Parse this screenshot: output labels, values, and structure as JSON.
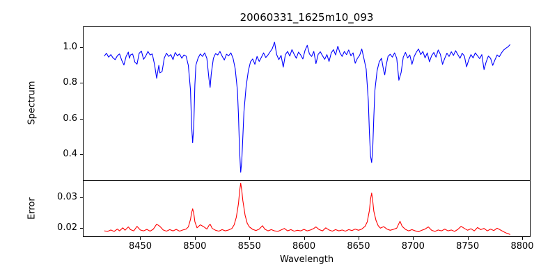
{
  "title": "20060331_1625m10_093",
  "colors": {
    "spectrum_line": "#0000ff",
    "error_line": "#ff0000",
    "axis": "#000000",
    "background": "#ffffff"
  },
  "chart_data": [
    {
      "type": "line",
      "name": "spectrum-panel",
      "title": "20060331_1625m10_093",
      "ylabel": "Spectrum",
      "xlabel": "",
      "legend": "none",
      "grid": false,
      "xlim": [
        8398,
        8807
      ],
      "ylim": [
        0.257,
        1.112
      ],
      "yticks": [
        1.0,
        0.8,
        0.6,
        0.4
      ],
      "ytick_labels": [
        "1.0",
        "0.8",
        "0.6",
        "0.4"
      ],
      "line_color": "#0000ff",
      "notable_features": "absorption lines: Ca II triplet 8498 (depth 0.465), 8542 (depth 0.30), 8662 (depth 0.355); weaker lines near 8465, 8514, 8674, 8688",
      "points": [
        [
          8417,
          0.95
        ],
        [
          8419,
          0.966
        ],
        [
          8421,
          0.944
        ],
        [
          8423,
          0.958
        ],
        [
          8425,
          0.94
        ],
        [
          8427,
          0.93
        ],
        [
          8429,
          0.952
        ],
        [
          8431,
          0.962
        ],
        [
          8433,
          0.926
        ],
        [
          8435,
          0.9
        ],
        [
          8437,
          0.948
        ],
        [
          8439,
          0.972
        ],
        [
          8440,
          0.938
        ],
        [
          8441,
          0.956
        ],
        [
          8443,
          0.962
        ],
        [
          8445,
          0.916
        ],
        [
          8447,
          0.905
        ],
        [
          8449,
          0.966
        ],
        [
          8451,
          0.978
        ],
        [
          8453,
          0.932
        ],
        [
          8455,
          0.95
        ],
        [
          8457,
          0.976
        ],
        [
          8459,
          0.956
        ],
        [
          8461,
          0.962
        ],
        [
          8463,
          0.904
        ],
        [
          8465,
          0.826
        ],
        [
          8467,
          0.898
        ],
        [
          8468,
          0.856
        ],
        [
          8470,
          0.864
        ],
        [
          8472,
          0.94
        ],
        [
          8474,
          0.966
        ],
        [
          8476,
          0.948
        ],
        [
          8478,
          0.958
        ],
        [
          8480,
          0.93
        ],
        [
          8482,
          0.97
        ],
        [
          8484,
          0.952
        ],
        [
          8486,
          0.962
        ],
        [
          8488,
          0.938
        ],
        [
          8490,
          0.956
        ],
        [
          8492,
          0.95
        ],
        [
          8494,
          0.898
        ],
        [
          8496,
          0.76
        ],
        [
          8497,
          0.56
        ],
        [
          8498,
          0.465
        ],
        [
          8499,
          0.56
        ],
        [
          8500,
          0.79
        ],
        [
          8501,
          0.9
        ],
        [
          8503,
          0.94
        ],
        [
          8505,
          0.962
        ],
        [
          8507,
          0.948
        ],
        [
          8509,
          0.968
        ],
        [
          8511,
          0.938
        ],
        [
          8513,
          0.82
        ],
        [
          8514,
          0.775
        ],
        [
          8515,
          0.85
        ],
        [
          8517,
          0.938
        ],
        [
          8519,
          0.964
        ],
        [
          8521,
          0.956
        ],
        [
          8523,
          0.976
        ],
        [
          8525,
          0.95
        ],
        [
          8527,
          0.928
        ],
        [
          8529,
          0.96
        ],
        [
          8531,
          0.952
        ],
        [
          8533,
          0.968
        ],
        [
          8535,
          0.938
        ],
        [
          8537,
          0.88
        ],
        [
          8539,
          0.758
        ],
        [
          8540,
          0.62
        ],
        [
          8541,
          0.42
        ],
        [
          8542,
          0.3
        ],
        [
          8543,
          0.36
        ],
        [
          8544,
          0.5
        ],
        [
          8545,
          0.64
        ],
        [
          8547,
          0.78
        ],
        [
          8549,
          0.868
        ],
        [
          8551,
          0.918
        ],
        [
          8553,
          0.934
        ],
        [
          8555,
          0.904
        ],
        [
          8557,
          0.948
        ],
        [
          8559,
          0.92
        ],
        [
          8561,
          0.944
        ],
        [
          8563,
          0.968
        ],
        [
          8565,
          0.942
        ],
        [
          8567,
          0.956
        ],
        [
          8569,
          0.974
        ],
        [
          8571,
          0.992
        ],
        [
          8573,
          1.028
        ],
        [
          8575,
          0.958
        ],
        [
          8577,
          0.93
        ],
        [
          8579,
          0.954
        ],
        [
          8581,
          0.888
        ],
        [
          8583,
          0.958
        ],
        [
          8585,
          0.976
        ],
        [
          8587,
          0.95
        ],
        [
          8589,
          0.986
        ],
        [
          8591,
          0.96
        ],
        [
          8593,
          0.938
        ],
        [
          8595,
          0.972
        ],
        [
          8597,
          0.956
        ],
        [
          8599,
          0.934
        ],
        [
          8601,
          0.982
        ],
        [
          8603,
          1.01
        ],
        [
          8605,
          0.962
        ],
        [
          8607,
          0.948
        ],
        [
          8609,
          0.976
        ],
        [
          8611,
          0.908
        ],
        [
          8613,
          0.96
        ],
        [
          8615,
          0.974
        ],
        [
          8617,
          0.952
        ],
        [
          8619,
          0.932
        ],
        [
          8621,
          0.958
        ],
        [
          8623,
          0.92
        ],
        [
          8625,
          0.968
        ],
        [
          8627,
          0.986
        ],
        [
          8629,
          0.956
        ],
        [
          8631,
          1.005
        ],
        [
          8633,
          0.968
        ],
        [
          8635,
          0.948
        ],
        [
          8637,
          0.976
        ],
        [
          8639,
          0.958
        ],
        [
          8641,
          0.984
        ],
        [
          8643,
          0.952
        ],
        [
          8645,
          0.968
        ],
        [
          8647,
          0.91
        ],
        [
          8649,
          0.938
        ],
        [
          8651,
          0.954
        ],
        [
          8653,
          0.99
        ],
        [
          8655,
          0.934
        ],
        [
          8657,
          0.878
        ],
        [
          8659,
          0.7
        ],
        [
          8660,
          0.52
        ],
        [
          8661,
          0.39
        ],
        [
          8662,
          0.355
        ],
        [
          8663,
          0.43
        ],
        [
          8664,
          0.61
        ],
        [
          8665,
          0.76
        ],
        [
          8667,
          0.868
        ],
        [
          8669,
          0.918
        ],
        [
          8671,
          0.938
        ],
        [
          8673,
          0.87
        ],
        [
          8674,
          0.845
        ],
        [
          8675,
          0.888
        ],
        [
          8677,
          0.948
        ],
        [
          8679,
          0.96
        ],
        [
          8681,
          0.944
        ],
        [
          8683,
          0.968
        ],
        [
          8685,
          0.938
        ],
        [
          8687,
          0.815
        ],
        [
          8689,
          0.858
        ],
        [
          8691,
          0.944
        ],
        [
          8693,
          0.97
        ],
        [
          8695,
          0.94
        ],
        [
          8697,
          0.956
        ],
        [
          8699,
          0.904
        ],
        [
          8701,
          0.948
        ],
        [
          8703,
          0.972
        ],
        [
          8705,
          0.99
        ],
        [
          8707,
          0.958
        ],
        [
          8709,
          0.976
        ],
        [
          8711,
          0.94
        ],
        [
          8713,
          0.968
        ],
        [
          8715,
          0.918
        ],
        [
          8717,
          0.952
        ],
        [
          8719,
          0.97
        ],
        [
          8721,
          0.944
        ],
        [
          8723,
          0.984
        ],
        [
          8725,
          0.96
        ],
        [
          8727,
          0.904
        ],
        [
          8729,
          0.938
        ],
        [
          8731,
          0.966
        ],
        [
          8733,
          0.948
        ],
        [
          8735,
          0.974
        ],
        [
          8737,
          0.954
        ],
        [
          8739,
          0.98
        ],
        [
          8741,
          0.958
        ],
        [
          8743,
          0.938
        ],
        [
          8745,
          0.966
        ],
        [
          8747,
          0.95
        ],
        [
          8749,
          0.89
        ],
        [
          8751,
          0.928
        ],
        [
          8753,
          0.958
        ],
        [
          8755,
          0.94
        ],
        [
          8757,
          0.968
        ],
        [
          8759,
          0.952
        ],
        [
          8761,
          0.936
        ],
        [
          8763,
          0.958
        ],
        [
          8765,
          0.874
        ],
        [
          8767,
          0.918
        ],
        [
          8769,
          0.95
        ],
        [
          8771,
          0.938
        ],
        [
          8773,
          0.898
        ],
        [
          8775,
          0.928
        ],
        [
          8777,
          0.956
        ],
        [
          8779,
          0.946
        ],
        [
          8781,
          0.968
        ],
        [
          8783,
          0.984
        ],
        [
          8785,
          0.994
        ],
        [
          8787,
          1.002
        ],
        [
          8789,
          1.015
        ]
      ]
    },
    {
      "type": "line",
      "name": "error-panel",
      "ylabel": "Error",
      "xlabel": "Wavelength",
      "legend": "none",
      "grid": false,
      "xlim": [
        8398,
        8807
      ],
      "ylim": [
        0.0172,
        0.0356
      ],
      "yticks": [
        0.03,
        0.02
      ],
      "ytick_labels": [
        "0.03",
        "0.02"
      ],
      "xticks": [
        8450,
        8500,
        8550,
        8600,
        8650,
        8700,
        8750,
        8800
      ],
      "xtick_labels": [
        "8450",
        "8500",
        "8550",
        "8600",
        "8650",
        "8700",
        "8750",
        "8800"
      ],
      "line_color": "#ff0000",
      "notable_features": "baseline ~0.019; error peaks at 8498 (0.026), 8542 (0.035), 8662 (0.0315), small bumps 8465, 8514, 8688",
      "points": [
        [
          8417,
          0.019
        ],
        [
          8420,
          0.0188
        ],
        [
          8423,
          0.0193
        ],
        [
          8426,
          0.0188
        ],
        [
          8429,
          0.0196
        ],
        [
          8431,
          0.019
        ],
        [
          8434,
          0.02
        ],
        [
          8436,
          0.0192
        ],
        [
          8439,
          0.0203
        ],
        [
          8441,
          0.0194
        ],
        [
          8444,
          0.019
        ],
        [
          8447,
          0.0205
        ],
        [
          8450,
          0.0193
        ],
        [
          8453,
          0.019
        ],
        [
          8456,
          0.0195
        ],
        [
          8459,
          0.0189
        ],
        [
          8462,
          0.0196
        ],
        [
          8465,
          0.0212
        ],
        [
          8468,
          0.0205
        ],
        [
          8471,
          0.0193
        ],
        [
          8474,
          0.0189
        ],
        [
          8477,
          0.0194
        ],
        [
          8480,
          0.019
        ],
        [
          8483,
          0.0195
        ],
        [
          8486,
          0.0189
        ],
        [
          8489,
          0.0193
        ],
        [
          8492,
          0.0196
        ],
        [
          8494,
          0.0203
        ],
        [
          8496,
          0.0228
        ],
        [
          8497,
          0.025
        ],
        [
          8498,
          0.0263
        ],
        [
          8499,
          0.0248
        ],
        [
          8500,
          0.022
        ],
        [
          8502,
          0.02
        ],
        [
          8505,
          0.021
        ],
        [
          8508,
          0.0204
        ],
        [
          8511,
          0.0196
        ],
        [
          8513,
          0.0208
        ],
        [
          8514,
          0.0212
        ],
        [
          8516,
          0.0198
        ],
        [
          8519,
          0.0192
        ],
        [
          8522,
          0.0189
        ],
        [
          8525,
          0.0194
        ],
        [
          8528,
          0.019
        ],
        [
          8531,
          0.0193
        ],
        [
          8534,
          0.0198
        ],
        [
          8536,
          0.021
        ],
        [
          8538,
          0.0235
        ],
        [
          8540,
          0.028
        ],
        [
          8541,
          0.032
        ],
        [
          8542,
          0.0348
        ],
        [
          8543,
          0.0325
        ],
        [
          8544,
          0.029
        ],
        [
          8546,
          0.0242
        ],
        [
          8548,
          0.0215
        ],
        [
          8550,
          0.0203
        ],
        [
          8553,
          0.0195
        ],
        [
          8556,
          0.0191
        ],
        [
          8559,
          0.0196
        ],
        [
          8562,
          0.0207
        ],
        [
          8564,
          0.0196
        ],
        [
          8567,
          0.019
        ],
        [
          8570,
          0.0194
        ],
        [
          8573,
          0.019
        ],
        [
          8576,
          0.0188
        ],
        [
          8579,
          0.0193
        ],
        [
          8582,
          0.0198
        ],
        [
          8585,
          0.019
        ],
        [
          8588,
          0.0194
        ],
        [
          8591,
          0.0189
        ],
        [
          8594,
          0.0192
        ],
        [
          8597,
          0.019
        ],
        [
          8600,
          0.0195
        ],
        [
          8603,
          0.019
        ],
        [
          8606,
          0.0193
        ],
        [
          8609,
          0.0198
        ],
        [
          8611,
          0.0203
        ],
        [
          8614,
          0.0194
        ],
        [
          8617,
          0.019
        ],
        [
          8620,
          0.02
        ],
        [
          8623,
          0.0193
        ],
        [
          8626,
          0.0189
        ],
        [
          8629,
          0.0194
        ],
        [
          8632,
          0.019
        ],
        [
          8635,
          0.0193
        ],
        [
          8638,
          0.0189
        ],
        [
          8641,
          0.0194
        ],
        [
          8644,
          0.0191
        ],
        [
          8647,
          0.0196
        ],
        [
          8650,
          0.0192
        ],
        [
          8653,
          0.0196
        ],
        [
          8656,
          0.0205
        ],
        [
          8658,
          0.022
        ],
        [
          8660,
          0.0258
        ],
        [
          8661,
          0.0295
        ],
        [
          8662,
          0.0315
        ],
        [
          8663,
          0.029
        ],
        [
          8664,
          0.0255
        ],
        [
          8666,
          0.0225
        ],
        [
          8668,
          0.0207
        ],
        [
          8670,
          0.0199
        ],
        [
          8673,
          0.0204
        ],
        [
          8676,
          0.0196
        ],
        [
          8679,
          0.0192
        ],
        [
          8682,
          0.0195
        ],
        [
          8685,
          0.0199
        ],
        [
          8688,
          0.0222
        ],
        [
          8690,
          0.0205
        ],
        [
          8693,
          0.0195
        ],
        [
          8696,
          0.019
        ],
        [
          8699,
          0.0194
        ],
        [
          8702,
          0.019
        ],
        [
          8705,
          0.0187
        ],
        [
          8708,
          0.0192
        ],
        [
          8711,
          0.0196
        ],
        [
          8714,
          0.0203
        ],
        [
          8717,
          0.0192
        ],
        [
          8720,
          0.0188
        ],
        [
          8723,
          0.0193
        ],
        [
          8726,
          0.019
        ],
        [
          8729,
          0.0196
        ],
        [
          8732,
          0.019
        ],
        [
          8735,
          0.0193
        ],
        [
          8738,
          0.0188
        ],
        [
          8741,
          0.0195
        ],
        [
          8744,
          0.0205
        ],
        [
          8747,
          0.0198
        ],
        [
          8750,
          0.0192
        ],
        [
          8753,
          0.0197
        ],
        [
          8756,
          0.019
        ],
        [
          8759,
          0.0201
        ],
        [
          8762,
          0.0194
        ],
        [
          8765,
          0.0198
        ],
        [
          8768,
          0.019
        ],
        [
          8771,
          0.0196
        ],
        [
          8774,
          0.0191
        ],
        [
          8777,
          0.0199
        ],
        [
          8780,
          0.0193
        ],
        [
          8783,
          0.0187
        ],
        [
          8786,
          0.0182
        ],
        [
          8789,
          0.0178
        ]
      ]
    }
  ]
}
